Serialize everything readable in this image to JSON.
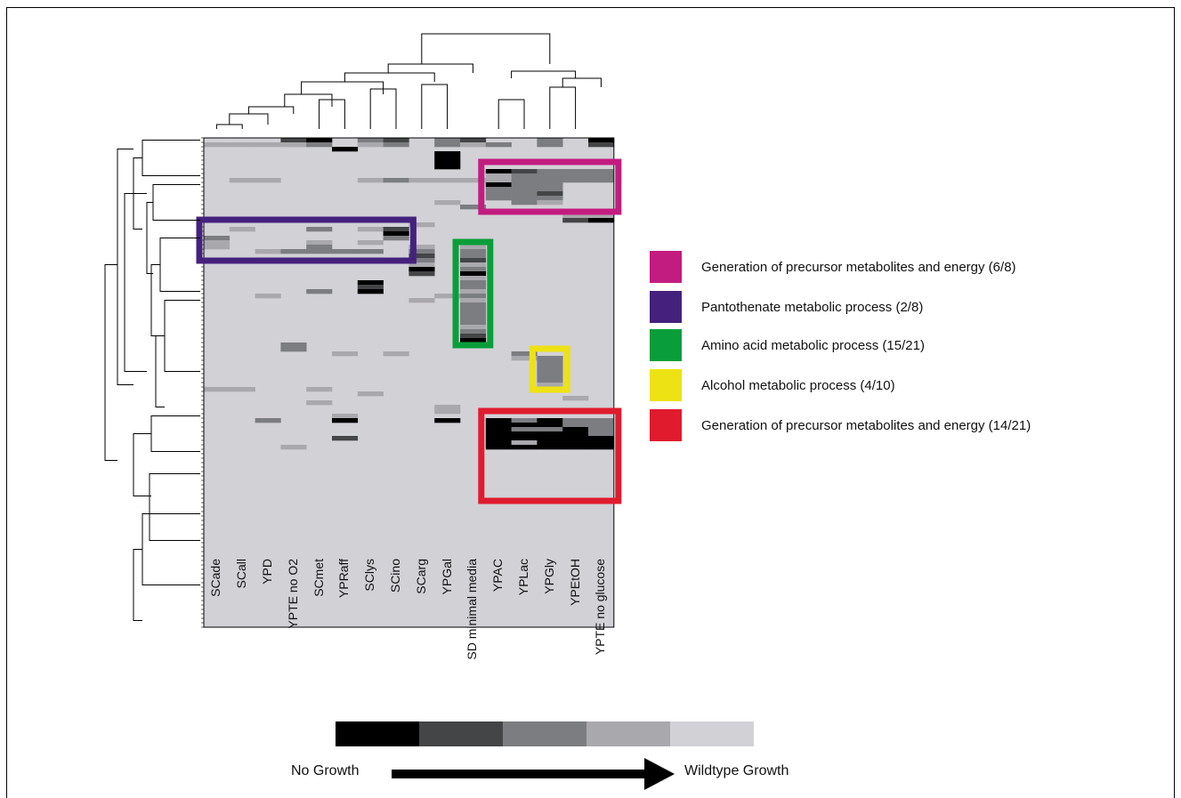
{
  "chart_data": {
    "type": "heatmap",
    "title": "",
    "columns": [
      "SCade",
      "SCall",
      "YPD",
      "YPTE no O2",
      "SCmet",
      "YPRaff",
      "SClys",
      "SCino",
      "SCarg",
      "YPGal",
      "SD minimal media",
      "YPAC",
      "YPLac",
      "YPGly",
      "YPEtOH",
      "YPTE no glucose"
    ],
    "row_count": 110,
    "scale": {
      "levels": [
        0,
        1,
        2,
        3,
        4
      ],
      "colors": [
        "#000000",
        "#434546",
        "#7c7d80",
        "#a9a8ac",
        "#d2d1d6"
      ],
      "low_label": "No Growth",
      "high_label": "Wildtype Growth"
    },
    "background_level": 4,
    "cells": [
      {
        "col": 3,
        "row": 0,
        "level": 1
      },
      {
        "col": 4,
        "row": 0,
        "level": 0
      },
      {
        "col": 6,
        "row": 0,
        "level": 2
      },
      {
        "col": 7,
        "row": 0,
        "level": 1
      },
      {
        "col": 9,
        "row": 0,
        "level": 2
      },
      {
        "col": 10,
        "row": 0,
        "level": 1
      },
      {
        "col": 13,
        "row": 0,
        "level": 2
      },
      {
        "col": 15,
        "row": 0,
        "level": 0
      },
      {
        "col": 0,
        "row": 1,
        "level": 3
      },
      {
        "col": 1,
        "row": 1,
        "level": 3
      },
      {
        "col": 2,
        "row": 1,
        "level": 3
      },
      {
        "col": 3,
        "row": 1,
        "level": 3
      },
      {
        "col": 4,
        "row": 1,
        "level": 2
      },
      {
        "col": 6,
        "row": 1,
        "level": 3
      },
      {
        "col": 7,
        "row": 1,
        "level": 2
      },
      {
        "col": 9,
        "row": 1,
        "level": 2
      },
      {
        "col": 10,
        "row": 1,
        "level": 3
      },
      {
        "col": 11,
        "row": 1,
        "level": 2
      },
      {
        "col": 13,
        "row": 1,
        "level": 2
      },
      {
        "col": 15,
        "row": 1,
        "level": 1
      },
      {
        "col": 5,
        "row": 2,
        "level": 0
      },
      {
        "col": 9,
        "row": 3,
        "level": 0
      },
      {
        "col": 9,
        "row": 4,
        "level": 0
      },
      {
        "col": 9,
        "row": 5,
        "level": 0
      },
      {
        "col": 9,
        "row": 6,
        "level": 0
      },
      {
        "col": 11,
        "row": 7,
        "level": 0
      },
      {
        "col": 12,
        "row": 7,
        "level": 1
      },
      {
        "col": 13,
        "row": 7,
        "level": 2
      },
      {
        "col": 14,
        "row": 7,
        "level": 2
      },
      {
        "col": 15,
        "row": 7,
        "level": 2
      },
      {
        "col": 11,
        "row": 8,
        "level": 3
      },
      {
        "col": 12,
        "row": 8,
        "level": 2
      },
      {
        "col": 13,
        "row": 8,
        "level": 2
      },
      {
        "col": 14,
        "row": 8,
        "level": 2
      },
      {
        "col": 15,
        "row": 8,
        "level": 2
      },
      {
        "col": 1,
        "row": 9,
        "level": 3
      },
      {
        "col": 2,
        "row": 9,
        "level": 3
      },
      {
        "col": 6,
        "row": 9,
        "level": 3
      },
      {
        "col": 7,
        "row": 9,
        "level": 2
      },
      {
        "col": 8,
        "row": 9,
        "level": 3
      },
      {
        "col": 9,
        "row": 9,
        "level": 3
      },
      {
        "col": 10,
        "row": 9,
        "level": 3
      },
      {
        "col": 11,
        "row": 9,
        "level": 3
      },
      {
        "col": 12,
        "row": 9,
        "level": 2
      },
      {
        "col": 13,
        "row": 9,
        "level": 2
      },
      {
        "col": 14,
        "row": 9,
        "level": 2
      },
      {
        "col": 15,
        "row": 9,
        "level": 2
      },
      {
        "col": 11,
        "row": 10,
        "level": 0
      },
      {
        "col": 12,
        "row": 10,
        "level": 2
      },
      {
        "col": 13,
        "row": 10,
        "level": 2
      },
      {
        "col": 11,
        "row": 11,
        "level": 2
      },
      {
        "col": 12,
        "row": 11,
        "level": 2
      },
      {
        "col": 13,
        "row": 11,
        "level": 2
      },
      {
        "col": 11,
        "row": 12,
        "level": 2
      },
      {
        "col": 12,
        "row": 12,
        "level": 2
      },
      {
        "col": 13,
        "row": 12,
        "level": 1
      },
      {
        "col": 11,
        "row": 13,
        "level": 2
      },
      {
        "col": 12,
        "row": 13,
        "level": 2
      },
      {
        "col": 13,
        "row": 13,
        "level": 2
      },
      {
        "col": 9,
        "row": 14,
        "level": 3
      },
      {
        "col": 12,
        "row": 14,
        "level": 2
      },
      {
        "col": 13,
        "row": 14,
        "level": 3
      },
      {
        "col": 10,
        "row": 15,
        "level": 2
      },
      {
        "col": 14,
        "row": 17,
        "level": 3
      },
      {
        "col": 15,
        "row": 17,
        "level": 3
      },
      {
        "col": 14,
        "row": 18,
        "level": 1
      },
      {
        "col": 15,
        "row": 18,
        "level": 0
      },
      {
        "col": 8,
        "row": 19,
        "level": 3
      },
      {
        "col": 1,
        "row": 20,
        "level": 3
      },
      {
        "col": 4,
        "row": 20,
        "level": 2
      },
      {
        "col": 6,
        "row": 20,
        "level": 3
      },
      {
        "col": 7,
        "row": 20,
        "level": 1
      },
      {
        "col": 7,
        "row": 21,
        "level": 0
      },
      {
        "col": 0,
        "row": 22,
        "level": 2
      },
      {
        "col": 7,
        "row": 22,
        "level": 2
      },
      {
        "col": 0,
        "row": 23,
        "level": 3
      },
      {
        "col": 4,
        "row": 23,
        "level": 3
      },
      {
        "col": 6,
        "row": 23,
        "level": 3
      },
      {
        "col": 0,
        "row": 24,
        "level": 3
      },
      {
        "col": 4,
        "row": 24,
        "level": 2
      },
      {
        "col": 8,
        "row": 24,
        "level": 3
      },
      {
        "col": 10,
        "row": 24,
        "level": 3
      },
      {
        "col": 2,
        "row": 25,
        "level": 3
      },
      {
        "col": 3,
        "row": 25,
        "level": 2
      },
      {
        "col": 4,
        "row": 25,
        "level": 2
      },
      {
        "col": 5,
        "row": 25,
        "level": 2
      },
      {
        "col": 6,
        "row": 25,
        "level": 2
      },
      {
        "col": 8,
        "row": 25,
        "level": 2
      },
      {
        "col": 10,
        "row": 25,
        "level": 2
      },
      {
        "col": 8,
        "row": 26,
        "level": 1
      },
      {
        "col": 10,
        "row": 26,
        "level": 2
      },
      {
        "col": 8,
        "row": 27,
        "level": 2
      },
      {
        "col": 10,
        "row": 27,
        "level": 1
      },
      {
        "col": 8,
        "row": 28,
        "level": 3
      },
      {
        "col": 10,
        "row": 28,
        "level": 3
      },
      {
        "col": 8,
        "row": 29,
        "level": 0
      },
      {
        "col": 10,
        "row": 29,
        "level": 2
      },
      {
        "col": 8,
        "row": 30,
        "level": 1
      },
      {
        "col": 10,
        "row": 30,
        "level": 0
      },
      {
        "col": 10,
        "row": 31,
        "level": 3
      },
      {
        "col": 6,
        "row": 32,
        "level": 0
      },
      {
        "col": 10,
        "row": 32,
        "level": 2
      },
      {
        "col": 6,
        "row": 33,
        "level": 1
      },
      {
        "col": 10,
        "row": 33,
        "level": 2
      },
      {
        "col": 4,
        "row": 34,
        "level": 2
      },
      {
        "col": 6,
        "row": 34,
        "level": 0
      },
      {
        "col": 10,
        "row": 34,
        "level": 3
      },
      {
        "col": 2,
        "row": 35,
        "level": 3
      },
      {
        "col": 9,
        "row": 35,
        "level": 3
      },
      {
        "col": 10,
        "row": 35,
        "level": 2
      },
      {
        "col": 8,
        "row": 36,
        "level": 3
      },
      {
        "col": 10,
        "row": 36,
        "level": 3
      },
      {
        "col": 10,
        "row": 37,
        "level": 2
      },
      {
        "col": 10,
        "row": 38,
        "level": 2
      },
      {
        "col": 10,
        "row": 39,
        "level": 2
      },
      {
        "col": 10,
        "row": 40,
        "level": 2
      },
      {
        "col": 10,
        "row": 41,
        "level": 2
      },
      {
        "col": 10,
        "row": 42,
        "level": 3
      },
      {
        "col": 10,
        "row": 43,
        "level": 2
      },
      {
        "col": 10,
        "row": 44,
        "level": 1
      },
      {
        "col": 10,
        "row": 45,
        "level": 0
      },
      {
        "col": 3,
        "row": 46,
        "level": 2
      },
      {
        "col": 3,
        "row": 47,
        "level": 2
      },
      {
        "col": 5,
        "row": 48,
        "level": 3
      },
      {
        "col": 7,
        "row": 48,
        "level": 3
      },
      {
        "col": 12,
        "row": 48,
        "level": 2
      },
      {
        "col": 12,
        "row": 49,
        "level": 3
      },
      {
        "col": 13,
        "row": 49,
        "level": 2
      },
      {
        "col": 13,
        "row": 50,
        "level": 2
      },
      {
        "col": 13,
        "row": 51,
        "level": 2
      },
      {
        "col": 13,
        "row": 52,
        "level": 2
      },
      {
        "col": 13,
        "row": 53,
        "level": 2
      },
      {
        "col": 13,
        "row": 54,
        "level": 2
      },
      {
        "col": 13,
        "row": 55,
        "level": 3
      },
      {
        "col": 0,
        "row": 56,
        "level": 3
      },
      {
        "col": 1,
        "row": 56,
        "level": 3
      },
      {
        "col": 4,
        "row": 56,
        "level": 3
      },
      {
        "col": 6,
        "row": 57,
        "level": 3
      },
      {
        "col": 14,
        "row": 58,
        "level": 3
      },
      {
        "col": 4,
        "row": 59,
        "level": 3
      },
      {
        "col": 9,
        "row": 60,
        "level": 3
      },
      {
        "col": 9,
        "row": 61,
        "level": 3
      },
      {
        "col": 5,
        "row": 62,
        "level": 3
      },
      {
        "col": 2,
        "row": 63,
        "level": 2
      },
      {
        "col": 5,
        "row": 63,
        "level": 0
      },
      {
        "col": 9,
        "row": 63,
        "level": 0
      },
      {
        "col": 11,
        "row": 63,
        "level": 0
      },
      {
        "col": 12,
        "row": 63,
        "level": 2
      },
      {
        "col": 13,
        "row": 63,
        "level": 0
      },
      {
        "col": 14,
        "row": 63,
        "level": 2
      },
      {
        "col": 15,
        "row": 63,
        "level": 2
      },
      {
        "col": 11,
        "row": 64,
        "level": 0
      },
      {
        "col": 12,
        "row": 64,
        "level": 0
      },
      {
        "col": 13,
        "row": 64,
        "level": 0
      },
      {
        "col": 14,
        "row": 64,
        "level": 2
      },
      {
        "col": 15,
        "row": 64,
        "level": 2
      },
      {
        "col": 11,
        "row": 65,
        "level": 0
      },
      {
        "col": 12,
        "row": 65,
        "level": 2
      },
      {
        "col": 13,
        "row": 65,
        "level": 2
      },
      {
        "col": 14,
        "row": 65,
        "level": 0
      },
      {
        "col": 15,
        "row": 65,
        "level": 2
      },
      {
        "col": 11,
        "row": 66,
        "level": 0
      },
      {
        "col": 12,
        "row": 66,
        "level": 0
      },
      {
        "col": 13,
        "row": 66,
        "level": 0
      },
      {
        "col": 14,
        "row": 66,
        "level": 0
      },
      {
        "col": 15,
        "row": 66,
        "level": 2
      },
      {
        "col": 5,
        "row": 67,
        "level": 1
      },
      {
        "col": 11,
        "row": 67,
        "level": 0
      },
      {
        "col": 12,
        "row": 67,
        "level": 0
      },
      {
        "col": 13,
        "row": 67,
        "level": 0
      },
      {
        "col": 14,
        "row": 67,
        "level": 0
      },
      {
        "col": 15,
        "row": 67,
        "level": 0
      },
      {
        "col": 11,
        "row": 68,
        "level": 0
      },
      {
        "col": 12,
        "row": 68,
        "level": 3
      },
      {
        "col": 13,
        "row": 68,
        "level": 0
      },
      {
        "col": 14,
        "row": 68,
        "level": 0
      },
      {
        "col": 15,
        "row": 68,
        "level": 0
      },
      {
        "col": 3,
        "row": 69,
        "level": 3
      },
      {
        "col": 11,
        "row": 69,
        "level": 0
      },
      {
        "col": 12,
        "row": 69,
        "level": 0
      },
      {
        "col": 13,
        "row": 69,
        "level": 0
      },
      {
        "col": 14,
        "row": 69,
        "level": 0
      },
      {
        "col": 15,
        "row": 69,
        "level": 0
      }
    ],
    "annotation_boxes": [
      {
        "label": "Generation of precursor metabolites and energy (6/8)",
        "color": "#c21c80",
        "cols": [
          11,
          15
        ],
        "rows": [
          6,
          15
        ]
      },
      {
        "label": "Pantothenate metabolic process (2/8)",
        "color": "#45217e",
        "cols": [
          0,
          7
        ],
        "rows": [
          19,
          26
        ]
      },
      {
        "label": "Amino acid metabolic process (15/21)",
        "color": "#0a9e3a",
        "cols": [
          10,
          10
        ],
        "rows": [
          24,
          45
        ]
      },
      {
        "label": "Alcohol metabolic process (4/10)",
        "color": "#ede213",
        "cols": [
          13,
          13
        ],
        "rows": [
          48,
          55
        ]
      },
      {
        "label": "Generation of precursor metabolites and energy (14/21)",
        "color": "#e01b2e",
        "cols": [
          11,
          15
        ],
        "rows": [
          62,
          80
        ]
      }
    ],
    "legend": [
      {
        "label": "Generation of precursor metabolites and energy (6/8)",
        "color": "#c21c80"
      },
      {
        "label": "Pantothenate metabolic process (2/8)",
        "color": "#45217e"
      },
      {
        "label": "Amino acid metabolic process (15/21)",
        "color": "#0a9e3a"
      },
      {
        "label": "Alcohol metabolic process (4/10)",
        "color": "#ede213"
      },
      {
        "label": "Generation of precursor metabolites and energy (14/21)",
        "color": "#e01b2e"
      }
    ],
    "legend_placement": "right",
    "dendrograms": [
      "top",
      "left"
    ],
    "grid": false
  }
}
